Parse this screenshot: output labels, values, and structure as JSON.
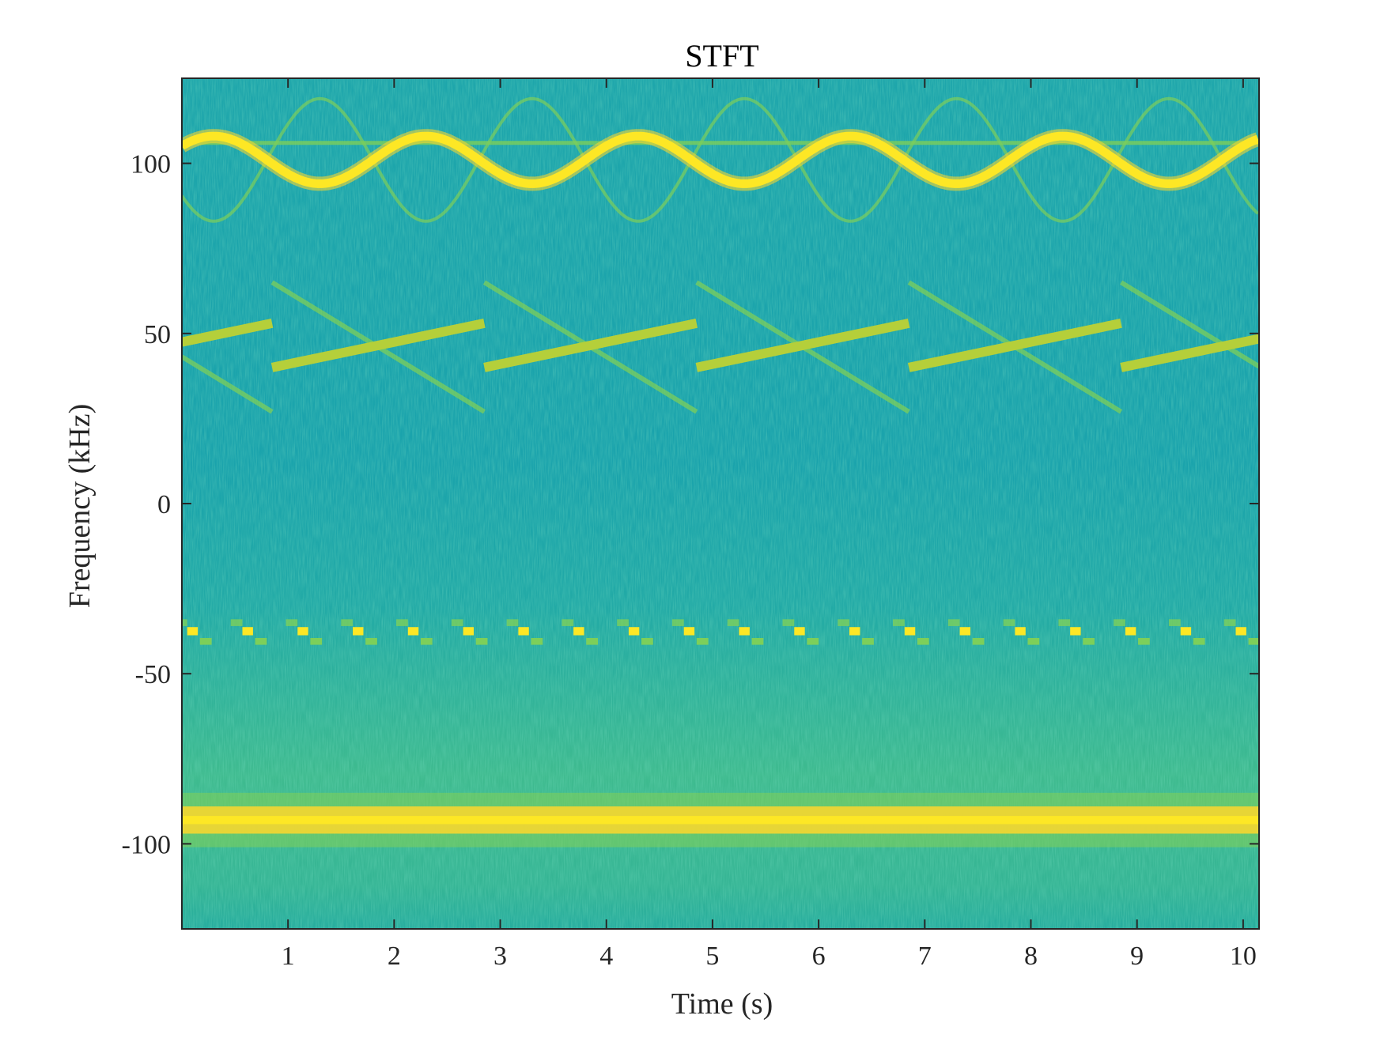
{
  "chart_data": {
    "type": "heatmap",
    "title": "STFT",
    "xlabel": "Time (s)",
    "ylabel": "Frequency (kHz)",
    "xlim": [
      0,
      10.15
    ],
    "ylim": [
      -125,
      125
    ],
    "xticks": [
      1,
      2,
      3,
      4,
      5,
      6,
      7,
      8,
      9,
      10
    ],
    "yticks": [
      100,
      50,
      0,
      -50,
      -100
    ],
    "grid": false,
    "colormap": "parula",
    "colors": {
      "background": "#1fa7a8",
      "noise_low": "#2bb3a0",
      "mid": "#7dcf5a",
      "strong": "#f5d630",
      "peak": "#fde725"
    },
    "components": [
      {
        "label": "sinusoidal FM tone",
        "center_khz": 101,
        "amplitude_khz": 7,
        "period_s": 2.0,
        "phase_peak_s": 0.3,
        "intensity": "strong"
      },
      {
        "label": "sinusoidal FM echo (wide)",
        "center_khz": 101,
        "amplitude_khz": 18,
        "period_s": 2.0,
        "phase_peak_s": 1.3,
        "intensity": "weak"
      },
      {
        "label": "constant tone",
        "freq_khz": 106,
        "intensity": "weak"
      },
      {
        "label": "up-chirp sawtooth",
        "period_s": 2.0,
        "start_s": -1.15,
        "f_start_khz": 40,
        "f_end_khz": 53,
        "intensity": "medium"
      },
      {
        "label": "down-chirp sawtooth",
        "period_s": 2.0,
        "start_s": 0.85,
        "f_start_khz": 65,
        "f_end_khz": 27,
        "intensity": "weak"
      },
      {
        "label": "FSK hopping tone",
        "f_high_khz": -37.5,
        "f_low_khz": -40.5,
        "hop_period_s": 0.52,
        "intensity": "strong"
      },
      {
        "label": "narrowband noise",
        "freq_khz": -93,
        "bandwidth_khz": 8,
        "intensity": "strong"
      }
    ]
  }
}
